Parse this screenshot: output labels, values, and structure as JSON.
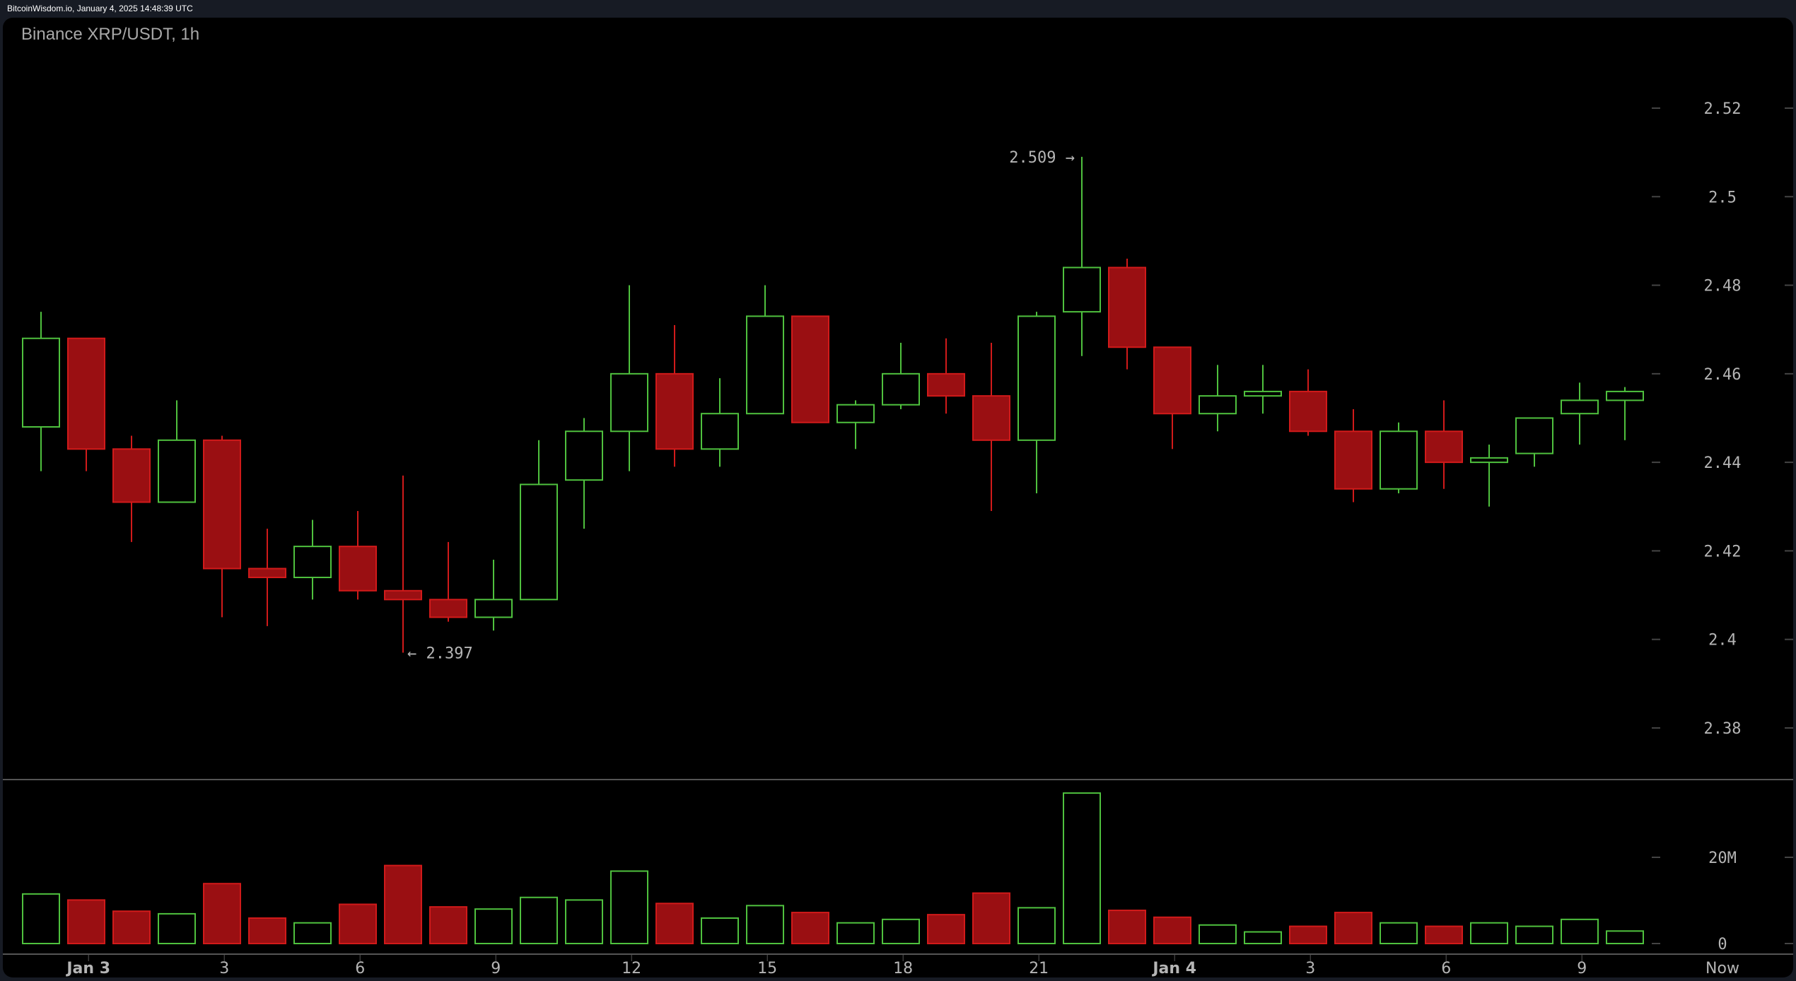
{
  "header": {
    "source_line": "BitcoinWisdom.io, January 4, 2025 14:48:39 UTC"
  },
  "chart": {
    "title": "Binance XRP/USDT, 1h"
  },
  "colors": {
    "up": "#4fc13e",
    "down": "#d11a1a",
    "down_fill": "#9a0f12",
    "axis_text": "#b5b5b5",
    "background": "#000000"
  },
  "annotations": {
    "high_label": "2.509 →",
    "low_label": "← 2.397"
  },
  "chart_data": {
    "type": "candlestick",
    "title": "Binance XRP/USDT, 1h",
    "price_axis": {
      "ticks": [
        2.52,
        2.5,
        2.48,
        2.46,
        2.44,
        2.42,
        2.4,
        2.38
      ],
      "tick_labels": [
        "2.52",
        "2.5",
        "2.48",
        "2.46",
        "2.44",
        "2.42",
        "2.4",
        "2.38"
      ],
      "range": [
        2.37,
        2.53
      ]
    },
    "volume_axis": {
      "ticks": [
        0,
        20
      ],
      "tick_labels": [
        "0",
        "20M"
      ],
      "unit": "M"
    },
    "time_axis": {
      "labels": [
        {
          "label": "Jan 3",
          "index": 2
        },
        {
          "label": "3",
          "index": 5
        },
        {
          "label": "6",
          "index": 8
        },
        {
          "label": "9",
          "index": 11
        },
        {
          "label": "12",
          "index": 14
        },
        {
          "label": "15",
          "index": 17
        },
        {
          "label": "18",
          "index": 20
        },
        {
          "label": "21",
          "index": 23
        },
        {
          "label": "Jan 4",
          "index": 26
        },
        {
          "label": "3",
          "index": 29
        },
        {
          "label": "6",
          "index": 32
        },
        {
          "label": "9",
          "index": 35
        },
        {
          "label": "Now",
          "index": 37
        }
      ]
    },
    "annotations": [
      {
        "text": "2.509",
        "type": "high",
        "index": 23
      },
      {
        "text": "2.397",
        "type": "low",
        "index": 8
      }
    ],
    "candles": [
      {
        "o": 2.448,
        "h": 2.474,
        "l": 2.438,
        "c": 2.468,
        "v": 11.5
      },
      {
        "o": 2.468,
        "h": 2.468,
        "l": 2.438,
        "c": 2.443,
        "v": 10.1
      },
      {
        "o": 2.443,
        "h": 2.446,
        "l": 2.422,
        "c": 2.431,
        "v": 7.5
      },
      {
        "o": 2.431,
        "h": 2.454,
        "l": 2.431,
        "c": 2.445,
        "v": 6.9
      },
      {
        "o": 2.445,
        "h": 2.446,
        "l": 2.405,
        "c": 2.416,
        "v": 13.9
      },
      {
        "o": 2.416,
        "h": 2.425,
        "l": 2.403,
        "c": 2.414,
        "v": 5.9
      },
      {
        "o": 2.414,
        "h": 2.427,
        "l": 2.409,
        "c": 2.421,
        "v": 4.8
      },
      {
        "o": 2.421,
        "h": 2.429,
        "l": 2.409,
        "c": 2.411,
        "v": 9.1
      },
      {
        "o": 2.411,
        "h": 2.437,
        "l": 2.397,
        "c": 2.409,
        "v": 18.1
      },
      {
        "o": 2.409,
        "h": 2.422,
        "l": 2.404,
        "c": 2.405,
        "v": 8.5
      },
      {
        "o": 2.405,
        "h": 2.418,
        "l": 2.402,
        "c": 2.409,
        "v": 8.0
      },
      {
        "o": 2.409,
        "h": 2.445,
        "l": 2.409,
        "c": 2.435,
        "v": 10.7
      },
      {
        "o": 2.436,
        "h": 2.45,
        "l": 2.425,
        "c": 2.447,
        "v": 10.1
      },
      {
        "o": 2.447,
        "h": 2.48,
        "l": 2.438,
        "c": 2.46,
        "v": 16.8
      },
      {
        "o": 2.46,
        "h": 2.471,
        "l": 2.439,
        "c": 2.443,
        "v": 9.3
      },
      {
        "o": 2.443,
        "h": 2.459,
        "l": 2.439,
        "c": 2.451,
        "v": 5.9
      },
      {
        "o": 2.451,
        "h": 2.48,
        "l": 2.451,
        "c": 2.473,
        "v": 8.8
      },
      {
        "o": 2.473,
        "h": 2.473,
        "l": 2.449,
        "c": 2.449,
        "v": 7.2
      },
      {
        "o": 2.449,
        "h": 2.454,
        "l": 2.443,
        "c": 2.453,
        "v": 4.8
      },
      {
        "o": 2.453,
        "h": 2.467,
        "l": 2.452,
        "c": 2.46,
        "v": 5.6
      },
      {
        "o": 2.46,
        "h": 2.468,
        "l": 2.451,
        "c": 2.455,
        "v": 6.7
      },
      {
        "o": 2.455,
        "h": 2.467,
        "l": 2.429,
        "c": 2.445,
        "v": 11.7
      },
      {
        "o": 2.445,
        "h": 2.474,
        "l": 2.433,
        "c": 2.473,
        "v": 8.3
      },
      {
        "o": 2.474,
        "h": 2.509,
        "l": 2.464,
        "c": 2.484,
        "v": 34.9
      },
      {
        "o": 2.484,
        "h": 2.486,
        "l": 2.461,
        "c": 2.466,
        "v": 7.7
      },
      {
        "o": 2.466,
        "h": 2.466,
        "l": 2.443,
        "c": 2.451,
        "v": 6.1
      },
      {
        "o": 2.451,
        "h": 2.462,
        "l": 2.447,
        "c": 2.455,
        "v": 4.3
      },
      {
        "o": 2.455,
        "h": 2.462,
        "l": 2.451,
        "c": 2.456,
        "v": 2.7
      },
      {
        "o": 2.456,
        "h": 2.461,
        "l": 2.446,
        "c": 2.447,
        "v": 4.0
      },
      {
        "o": 2.447,
        "h": 2.452,
        "l": 2.431,
        "c": 2.434,
        "v": 7.2
      },
      {
        "o": 2.434,
        "h": 2.449,
        "l": 2.433,
        "c": 2.447,
        "v": 4.8
      },
      {
        "o": 2.447,
        "h": 2.454,
        "l": 2.434,
        "c": 2.44,
        "v": 4.0
      },
      {
        "o": 2.44,
        "h": 2.444,
        "l": 2.43,
        "c": 2.441,
        "v": 4.8
      },
      {
        "o": 2.442,
        "h": 2.45,
        "l": 2.439,
        "c": 2.45,
        "v": 4.0
      },
      {
        "o": 2.451,
        "h": 2.458,
        "l": 2.444,
        "c": 2.454,
        "v": 5.6
      },
      {
        "o": 2.454,
        "h": 2.457,
        "l": 2.445,
        "c": 2.456,
        "v": 2.9
      }
    ],
    "grid": false,
    "legend": null
  }
}
